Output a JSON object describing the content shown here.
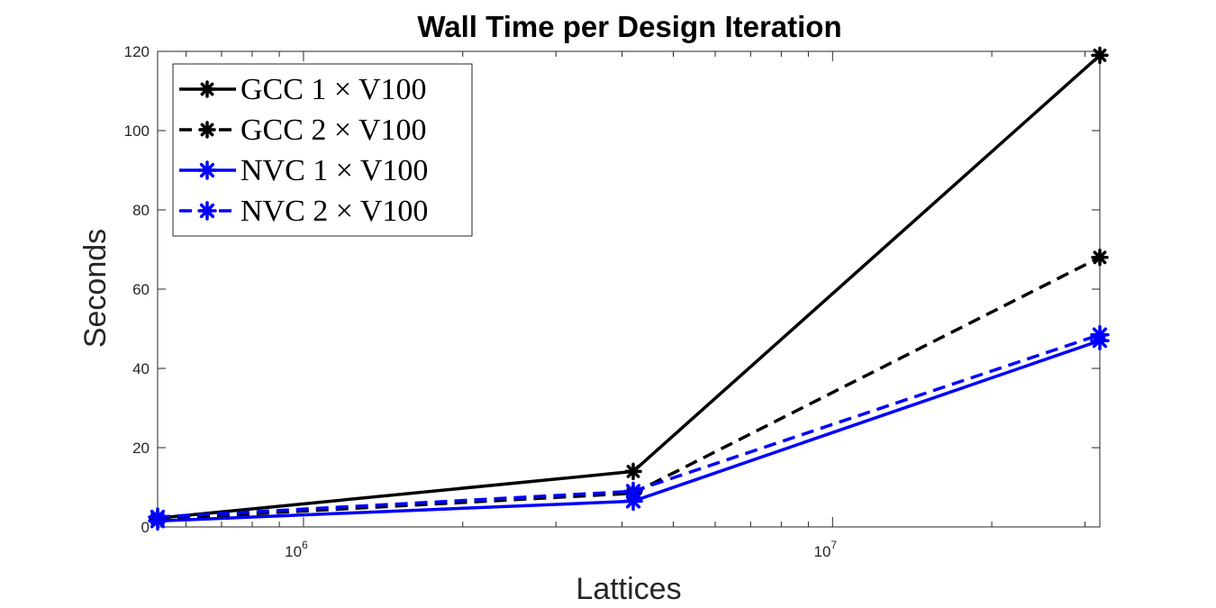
{
  "chart_data": {
    "type": "line",
    "title": "Wall Time per Design Iteration",
    "xlabel": "Lattices",
    "ylabel": "Seconds",
    "xscale": "log",
    "xlim": [
      530000,
      32000000
    ],
    "ylim": [
      0,
      120
    ],
    "yticks": [
      0,
      20,
      40,
      60,
      80,
      100,
      120
    ],
    "xticks": [
      {
        "value": 1000000,
        "base": "10",
        "exp": "6"
      },
      {
        "value": 10000000,
        "base": "10",
        "exp": "7"
      }
    ],
    "grid": false,
    "legend_position": "top-left",
    "series": [
      {
        "name": "GCC 1 × V100",
        "color": "#000000",
        "dash": "solid",
        "x": [
          530000,
          4200000,
          32000000
        ],
        "y": [
          2.2,
          14.0,
          119.0
        ]
      },
      {
        "name": "GCC 2 × V100",
        "color": "#000000",
        "dash": "dashed",
        "x": [
          530000,
          4200000,
          32000000
        ],
        "y": [
          2.0,
          8.5,
          68.0
        ]
      },
      {
        "name": "NVC 1 × V100",
        "color": "#0000ff",
        "dash": "solid",
        "x": [
          530000,
          4200000,
          32000000
        ],
        "y": [
          1.5,
          6.5,
          47.0
        ]
      },
      {
        "name": "NVC 2 × V100",
        "color": "#0000ff",
        "dash": "dashed",
        "x": [
          530000,
          4200000,
          32000000
        ],
        "y": [
          2.5,
          9.0,
          48.5
        ]
      }
    ]
  }
}
